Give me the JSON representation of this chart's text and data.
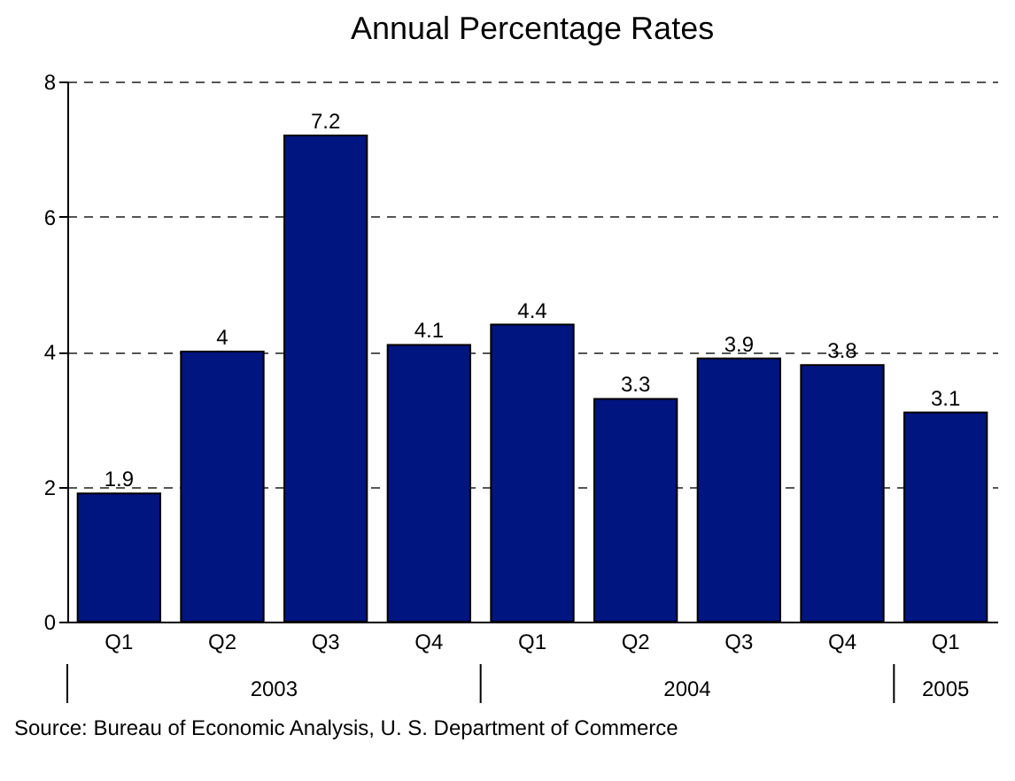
{
  "chart_data": {
    "type": "bar",
    "title": "Annual Percentage Rates",
    "categories": [
      "Q1",
      "Q2",
      "Q3",
      "Q4",
      "Q1",
      "Q2",
      "Q3",
      "Q4",
      "Q1"
    ],
    "values": [
      1.9,
      4,
      7.2,
      4.1,
      4.4,
      3.3,
      3.9,
      3.8,
      3.1
    ],
    "color": "#00157f",
    "ylim": [
      0,
      8
    ],
    "yticks": [
      0,
      2,
      4,
      6,
      8
    ],
    "grid": "y",
    "line_style": "dashed",
    "data_labels": true,
    "annotations": [
      "2003",
      "2004",
      "2005",
      "Source:  Bureau of Economic Analysis, U. S. Department of Commerce"
    ]
  }
}
